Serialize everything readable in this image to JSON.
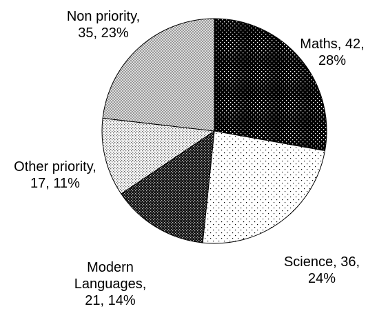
{
  "chart_data": {
    "type": "pie",
    "categories": [
      "Maths",
      "Science",
      "Modern Languages",
      "Other priority",
      "Non priority"
    ],
    "values": [
      42,
      36,
      21,
      17,
      35
    ],
    "percentages": [
      28,
      24,
      14,
      11,
      23
    ],
    "percent_labels": [
      "28%",
      "24%",
      "14%",
      "11%",
      "23%"
    ]
  }
}
